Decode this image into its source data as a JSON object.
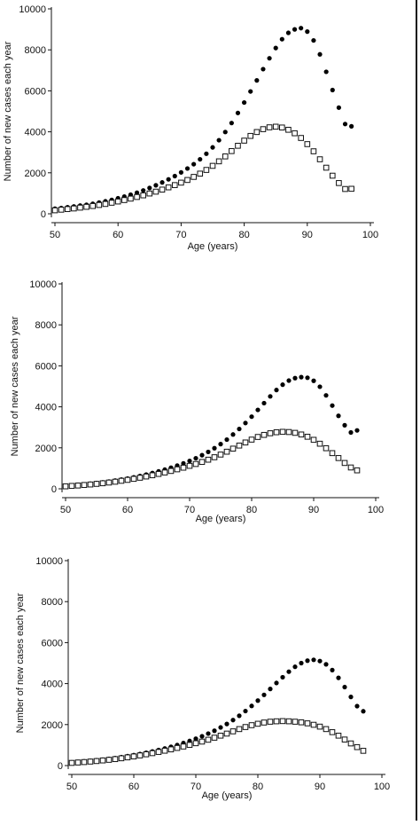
{
  "colors": {
    "axis": "#111111",
    "filled_marker": "#000000",
    "open_marker": "#ffffff"
  },
  "chart_data": [
    {
      "type": "scatter",
      "title": "",
      "xlabel": "Age (years)",
      "ylabel": "Number of new cases each year",
      "xlim": [
        50,
        100
      ],
      "ylim": [
        0,
        10000
      ],
      "xticks": [
        "50",
        "60",
        "70",
        "80",
        "90",
        "100"
      ],
      "yticks": [
        "0",
        "2000",
        "4000",
        "6000",
        "8000",
        "10000"
      ],
      "grid": false,
      "legend": "none",
      "x": [
        50,
        51,
        52,
        53,
        54,
        55,
        56,
        57,
        58,
        59,
        60,
        61,
        62,
        63,
        64,
        65,
        66,
        67,
        68,
        69,
        70,
        71,
        72,
        73,
        74,
        75,
        76,
        77,
        78,
        79,
        80,
        81,
        82,
        83,
        84,
        85,
        86,
        87,
        88,
        89,
        90,
        91,
        92,
        93,
        94,
        95,
        96,
        97
      ],
      "series": [
        {
          "marker": "filled-circle",
          "values": [
            250,
            280,
            320,
            360,
            400,
            440,
            490,
            550,
            610,
            680,
            760,
            840,
            930,
            1030,
            1140,
            1260,
            1390,
            1530,
            1680,
            1840,
            2020,
            2210,
            2420,
            2660,
            2930,
            3240,
            3590,
            3990,
            4430,
            4920,
            5430,
            5970,
            6510,
            7060,
            7590,
            8090,
            8520,
            8830,
            9000,
            9060,
            8890,
            8460,
            7780,
            6930,
            6040,
            5180,
            4380,
            4270
          ]
        },
        {
          "marker": "open-square",
          "values": [
            170,
            200,
            230,
            260,
            300,
            340,
            380,
            430,
            480,
            540,
            600,
            670,
            740,
            820,
            900,
            990,
            1080,
            1180,
            1290,
            1400,
            1520,
            1650,
            1800,
            1960,
            2140,
            2340,
            2560,
            2800,
            3060,
            3320,
            3570,
            3800,
            3990,
            4130,
            4220,
            4250,
            4210,
            4100,
            3930,
            3700,
            3400,
            3050,
            2660,
            2250,
            1860,
            1500,
            1210,
            1220
          ]
        }
      ]
    },
    {
      "type": "scatter",
      "title": "",
      "xlabel": "Age (years)",
      "ylabel": "Number of new cases each year",
      "xlim": [
        50,
        100
      ],
      "ylim": [
        0,
        10000
      ],
      "xticks": [
        "50",
        "60",
        "70",
        "80",
        "90",
        "100"
      ],
      "yticks": [
        "0",
        "2000",
        "4000",
        "6000",
        "8000",
        "10000"
      ],
      "grid": false,
      "legend": "none",
      "x": [
        50,
        51,
        52,
        53,
        54,
        55,
        56,
        57,
        58,
        59,
        60,
        61,
        62,
        63,
        64,
        65,
        66,
        67,
        68,
        69,
        70,
        71,
        72,
        73,
        74,
        75,
        76,
        77,
        78,
        79,
        80,
        81,
        82,
        83,
        84,
        85,
        86,
        87,
        88,
        89,
        90,
        91,
        92,
        93,
        94,
        95,
        96,
        97
      ],
      "series": [
        {
          "marker": "filled-circle",
          "values": [
            150,
            170,
            195,
            220,
            250,
            280,
            315,
            355,
            400,
            450,
            500,
            560,
            625,
            695,
            770,
            850,
            935,
            1030,
            1130,
            1240,
            1360,
            1490,
            1640,
            1800,
            1980,
            2180,
            2400,
            2650,
            2920,
            3210,
            3520,
            3850,
            4180,
            4510,
            4820,
            5080,
            5280,
            5400,
            5450,
            5420,
            5270,
            4980,
            4560,
            4060,
            3560,
            3100,
            2750,
            2850
          ]
        },
        {
          "marker": "open-square",
          "values": [
            120,
            140,
            160,
            185,
            210,
            240,
            270,
            305,
            345,
            390,
            435,
            485,
            540,
            600,
            660,
            725,
            795,
            870,
            950,
            1030,
            1120,
            1210,
            1310,
            1420,
            1540,
            1670,
            1810,
            1960,
            2110,
            2260,
            2400,
            2530,
            2630,
            2710,
            2760,
            2780,
            2770,
            2730,
            2650,
            2540,
            2390,
            2200,
            1980,
            1740,
            1500,
            1260,
            1040,
            900
          ]
        }
      ]
    },
    {
      "type": "scatter",
      "title": "",
      "xlabel": "Age (years)",
      "ylabel": "Number of new cases each year",
      "xlim": [
        50,
        100
      ],
      "ylim": [
        0,
        10000
      ],
      "xticks": [
        "50",
        "60",
        "70",
        "80",
        "90",
        "100"
      ],
      "yticks": [
        "0",
        "2000",
        "4000",
        "6000",
        "8000",
        "10000"
      ],
      "grid": false,
      "legend": "none",
      "x": [
        50,
        51,
        52,
        53,
        54,
        55,
        56,
        57,
        58,
        59,
        60,
        61,
        62,
        63,
        64,
        65,
        66,
        67,
        68,
        69,
        70,
        71,
        72,
        73,
        74,
        75,
        76,
        77,
        78,
        79,
        80,
        81,
        82,
        83,
        84,
        85,
        86,
        87,
        88,
        89,
        90,
        91,
        92,
        93,
        94,
        95,
        96,
        97
      ],
      "series": [
        {
          "marker": "filled-circle",
          "values": [
            160,
            180,
            205,
            230,
            260,
            290,
            325,
            365,
            410,
            460,
            510,
            565,
            625,
            690,
            760,
            835,
            915,
            1000,
            1100,
            1200,
            1310,
            1430,
            1560,
            1700,
            1860,
            2030,
            2220,
            2430,
            2660,
            2910,
            3170,
            3450,
            3740,
            4030,
            4310,
            4580,
            4820,
            5000,
            5120,
            5160,
            5100,
            4940,
            4660,
            4280,
            3830,
            3350,
            2900,
            2650
          ]
        },
        {
          "marker": "open-square",
          "values": [
            130,
            150,
            170,
            195,
            220,
            250,
            280,
            315,
            355,
            400,
            445,
            495,
            550,
            605,
            665,
            725,
            790,
            860,
            930,
            1010,
            1090,
            1170,
            1260,
            1360,
            1460,
            1560,
            1670,
            1780,
            1880,
            1970,
            2040,
            2100,
            2140,
            2160,
            2170,
            2160,
            2140,
            2110,
            2060,
            1990,
            1900,
            1780,
            1630,
            1460,
            1270,
            1080,
            900,
            720
          ]
        }
      ]
    }
  ]
}
